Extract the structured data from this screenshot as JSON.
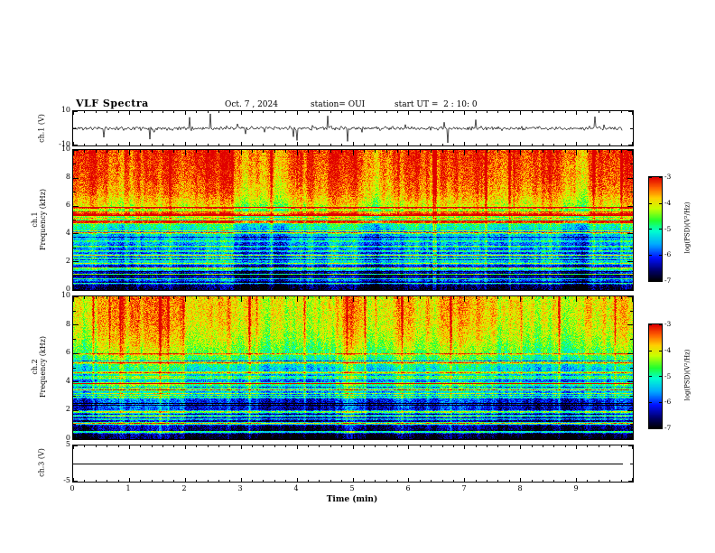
{
  "header": {
    "title": "VLF Spectra",
    "date": "Oct. 7 , 2024",
    "station": "station= OUI",
    "start_ut": "start UT =  2 : 10: 0"
  },
  "xaxis": {
    "label": "Time (min)",
    "ticks": [
      0,
      1,
      2,
      3,
      4,
      5,
      6,
      7,
      8,
      9
    ],
    "lim": [
      0,
      10
    ],
    "minor_step_min": 0.2
  },
  "colorbar": {
    "label": "log(PSD)(V²/Hz)",
    "ticks": [
      -3,
      -4,
      -5,
      -6,
      -7
    ],
    "range": [
      -7,
      -3
    ],
    "stops": [
      [
        0,
        "#000006"
      ],
      [
        0.1,
        "#00006e"
      ],
      [
        0.22,
        "#0010ff"
      ],
      [
        0.35,
        "#00a8ff"
      ],
      [
        0.48,
        "#00ffd0"
      ],
      [
        0.58,
        "#20ff30"
      ],
      [
        0.7,
        "#c8ff00"
      ],
      [
        0.8,
        "#ffd000"
      ],
      [
        0.9,
        "#ff6000"
      ],
      [
        1,
        "#e00000"
      ]
    ]
  },
  "chart_data": [
    {
      "type": "line",
      "name": "ch1-waveform",
      "ylabel": "ch.1 (V)",
      "ylim": [
        -10,
        10
      ],
      "yticks": [
        10,
        -10
      ],
      "description": "broadband noise near 0 V with impulsive spikes up to ±10 V",
      "baseline_v": 0,
      "noise_amp_v": 1.1,
      "spike_prob": 0.035,
      "spike_max_v": 9.5,
      "x_data_end_min": 9.83,
      "seed": 11
    },
    {
      "type": "heatmap",
      "name": "ch1-spectrogram",
      "ylabel_lines": [
        "ch.1",
        "Frequency (kHz)"
      ],
      "ylim": [
        0,
        10
      ],
      "yticks": [
        0,
        2,
        4,
        6,
        8,
        10
      ],
      "value_label": "log(PSD)(V²/Hz)",
      "value_range": [
        -7,
        -3
      ],
      "profile_freq_khz": [
        0,
        0.5,
        1,
        2,
        3,
        4,
        5,
        6,
        7,
        8,
        9,
        10
      ],
      "profile_log_psd": [
        -7,
        -6.7,
        -6.5,
        -6.2,
        -5.9,
        -5.5,
        -4.9,
        -4.2,
        -3.7,
        -3.5,
        -3.4,
        -3.3
      ],
      "h_line_count": 30,
      "v_streak_prob": 0.035,
      "seed": 21
    },
    {
      "type": "heatmap",
      "name": "ch2-spectrogram",
      "ylabel_lines": [
        "ch.2",
        "Frequency (kHz)"
      ],
      "ylim": [
        0,
        10
      ],
      "yticks": [
        0,
        2,
        4,
        6,
        8,
        10
      ],
      "value_label": "log(PSD)(V²/Hz)",
      "value_range": [
        -7,
        -3
      ],
      "profile_freq_khz": [
        0,
        0.5,
        1,
        2,
        3,
        4,
        5,
        6,
        7,
        8,
        9,
        10
      ],
      "profile_log_psd": [
        -7,
        -6.7,
        -6.5,
        -6.2,
        -5.9,
        -5.6,
        -5.1,
        -4.5,
        -4.1,
        -3.9,
        -3.8,
        -3.8
      ],
      "h_line_count": 30,
      "v_streak_prob": 0.03,
      "seed": 31
    },
    {
      "type": "line",
      "name": "ch3-level",
      "ylabel": "ch.3 (V)",
      "ylim": [
        -5,
        5
      ],
      "yticks": [
        5,
        -5
      ],
      "description": "constant 0 V line",
      "constant_v": 0,
      "x_data_end_min": 9.83,
      "seed": 41
    }
  ]
}
